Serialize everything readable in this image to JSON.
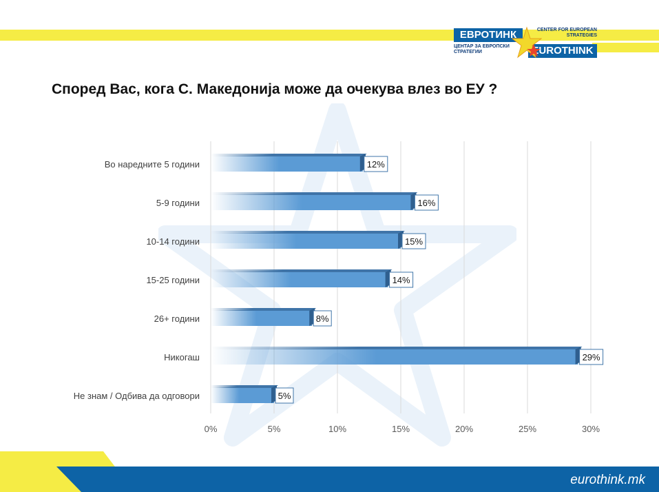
{
  "header": {
    "logo_cyrillic": "ЕВРОТИНК",
    "logo_cyrillic_sub": "ЦЕНТАР ЗА ЕВРОПСКИ СТРАТЕГИИ",
    "logo_latin": "EUROTHINK",
    "logo_latin_sub": "CENTER FOR EUROPEAN STRATEGIES"
  },
  "colors": {
    "bar": "#5b9bd5",
    "bar_top": "#3f74a8",
    "stripe_yellow": "#f5ec45",
    "footer_blue": "#0d63a6"
  },
  "chart_data": {
    "type": "bar",
    "orientation": "horizontal",
    "title": "Според Вас, кога С. Македонија може да очекува влез во ЕУ ?",
    "categories": [
      "Во наредните 5 години",
      "5-9 години",
      "10-14 години",
      "15-25 години",
      "26+ години",
      "Никогаш",
      "Не знам / Одбива да одговори"
    ],
    "values": [
      12,
      16,
      15,
      14,
      8,
      29,
      5
    ],
    "data_labels": [
      "12%",
      "16%",
      "15%",
      "14%",
      "8%",
      "29%",
      "5%"
    ],
    "xlim": [
      0,
      30
    ],
    "x_ticks": [
      0,
      5,
      10,
      15,
      20,
      25,
      30
    ],
    "x_tick_labels": [
      "0%",
      "5%",
      "10%",
      "15%",
      "20%",
      "25%",
      "30%"
    ],
    "grid": true,
    "legend": "none"
  },
  "footer": {
    "url": "eurothink.mk"
  }
}
